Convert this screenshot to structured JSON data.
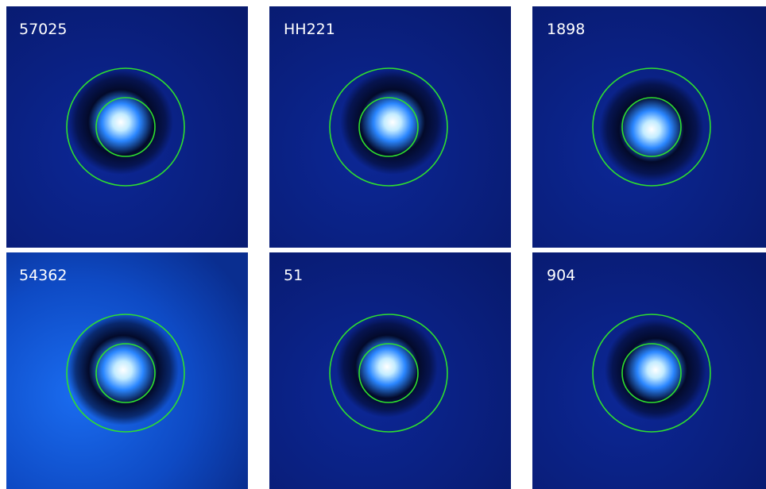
{
  "panels": [
    {
      "label": "57025"
    },
    {
      "label": "HH221"
    },
    {
      "label": "1898"
    },
    {
      "label": "54362"
    },
    {
      "label": "51"
    },
    {
      "label": "904"
    }
  ]
}
